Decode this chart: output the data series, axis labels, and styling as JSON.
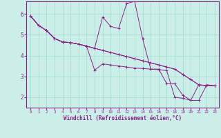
{
  "bg_color": "#cceee8",
  "line_color": "#882288",
  "xlabel": "Windchill (Refroidissement éolien,°C)",
  "xlim": [
    -0.5,
    23.5
  ],
  "ylim": [
    1.5,
    6.6
  ],
  "xticks": [
    0,
    1,
    2,
    3,
    4,
    5,
    6,
    7,
    8,
    9,
    10,
    11,
    12,
    13,
    14,
    15,
    16,
    17,
    18,
    19,
    20,
    21,
    22,
    23
  ],
  "yticks": [
    2,
    3,
    4,
    5,
    6
  ],
  "grid_color": "#99ddcc",
  "series_spiky": [
    5.9,
    5.45,
    5.2,
    4.82,
    4.65,
    4.62,
    4.55,
    4.45,
    4.35,
    5.85,
    5.4,
    5.3,
    6.5,
    6.6,
    4.8,
    3.35,
    3.35,
    2.65,
    2.65,
    2.1,
    1.85,
    2.6,
    2.55,
    2.55
  ],
  "series_line1": [
    5.9,
    5.45,
    5.2,
    4.82,
    4.65,
    4.62,
    4.55,
    4.45,
    3.3,
    3.6,
    3.55,
    3.5,
    3.45,
    3.4,
    3.38,
    3.35,
    3.32,
    3.28,
    2.0,
    1.95,
    1.85,
    1.85,
    2.6,
    2.55
  ],
  "series_line2": [
    5.9,
    5.45,
    5.2,
    4.82,
    4.65,
    4.62,
    4.55,
    4.45,
    4.35,
    4.25,
    4.15,
    4.05,
    3.95,
    3.85,
    3.75,
    3.65,
    3.55,
    3.45,
    3.35,
    3.1,
    2.85,
    2.6,
    2.55,
    2.55
  ],
  "series_line3": [
    5.9,
    5.45,
    5.2,
    4.82,
    4.65,
    4.62,
    4.55,
    4.45,
    4.35,
    4.25,
    4.15,
    4.05,
    3.95,
    3.85,
    3.75,
    3.65,
    3.55,
    3.45,
    3.35,
    3.1,
    2.85,
    2.6,
    2.55,
    2.55
  ]
}
